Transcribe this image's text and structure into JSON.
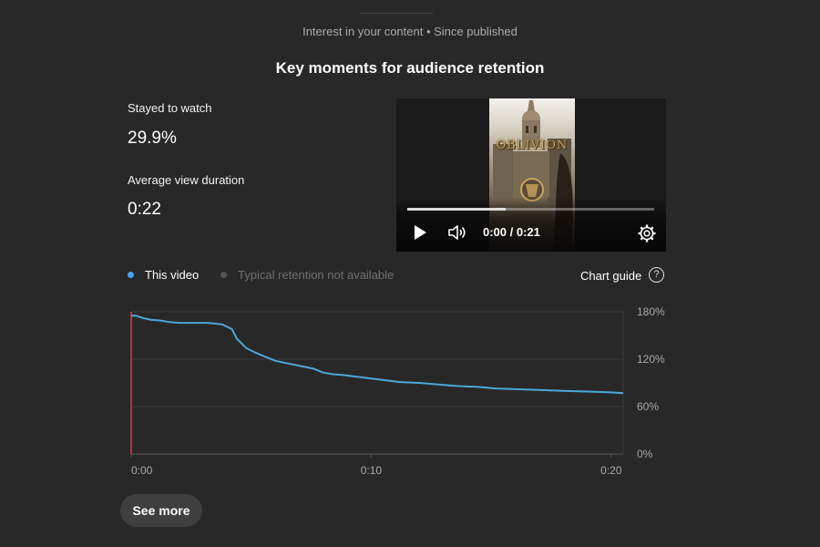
{
  "header": {
    "subheader": "Interest in your content • Since published",
    "title": "Key moments for audience retention"
  },
  "metrics": {
    "stayed_label": "Stayed to watch",
    "stayed_value": "29.9%",
    "avd_label": "Average view duration",
    "avd_value": "0:22"
  },
  "player": {
    "thumbnail_text": "OBLIVION",
    "time": "0:00 / 0:21",
    "progress": 0.4
  },
  "legend": {
    "this_video": "This video",
    "typical": "Typical retention not available",
    "this_video_color": "#3ea6ff",
    "typical_color": "#555555",
    "chart_guide": "Chart guide",
    "help_glyph": "?"
  },
  "chart_data": {
    "type": "line",
    "x_ticks": [
      "0:00",
      "0:10",
      "0:20"
    ],
    "y_ticks": [
      "180%",
      "120%",
      "60%",
      "0%"
    ],
    "xlim": [
      0,
      20.5
    ],
    "ylim": [
      0,
      180
    ],
    "grid": true,
    "marker_x": 0,
    "marker_color": "#cc4444",
    "series": [
      {
        "name": "This video",
        "color": "#4aa8d8",
        "x": [
          0,
          0.2,
          0.5,
          0.8,
          1.2,
          1.6,
          2.0,
          2.6,
          3.2,
          3.8,
          4.2,
          4.4,
          4.6,
          4.8,
          5.2,
          5.6,
          6.0,
          6.8,
          7.6,
          8.0,
          8.4,
          8.8,
          9.6,
          10.4,
          11.2,
          12.0,
          12.8,
          13.6,
          14.4,
          15.2,
          16.0,
          17.0,
          18.0,
          19.0,
          20.0,
          20.5
        ],
        "y": [
          175,
          175,
          172,
          170,
          169,
          167,
          166,
          166,
          166,
          164,
          158,
          146,
          140,
          134,
          128,
          123,
          118,
          113,
          108,
          103,
          101,
          100,
          97,
          94,
          91,
          90,
          88,
          86,
          85,
          83,
          82,
          81,
          80,
          79,
          78,
          77
        ]
      }
    ]
  },
  "footer": {
    "see_more": "See more"
  }
}
